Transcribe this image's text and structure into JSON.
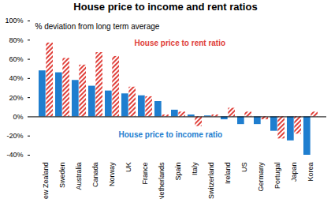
{
  "chart_data": {
    "type": "bar",
    "title": "House price to income and rent ratios",
    "subtitle": "% deviation from long term average",
    "categories": [
      "New Zealand",
      "Sweden",
      "Australia",
      "Canada",
      "Norway",
      "UK",
      "France",
      "Netherlands",
      "Spain",
      "Italy",
      "Switzerland",
      "Ireland",
      "US",
      "Germany",
      "Portugal",
      "Japan",
      "Korea"
    ],
    "series": [
      {
        "name": "House price to income ratio",
        "color": "#1f7ecf",
        "values": [
          48,
          46,
          38,
          32,
          27,
          24,
          22,
          16,
          7,
          2,
          1,
          -3,
          -8,
          -8,
          -15,
          -25,
          -40
        ]
      },
      {
        "name": "House price to rent ratio",
        "color": "#e0403a",
        "values": [
          77,
          61,
          54,
          67,
          63,
          31,
          21,
          2,
          5,
          -10,
          2,
          9,
          5,
          -3,
          -23,
          -18,
          5
        ]
      }
    ],
    "ylim": [
      -40,
      100
    ],
    "yticks": [
      {
        "value": -40,
        "label": "-40%"
      },
      {
        "value": -20,
        "label": "-20%"
      },
      {
        "value": 0,
        "label": "0%"
      },
      {
        "value": 20,
        "label": "20%"
      },
      {
        "value": 40,
        "label": "40%"
      },
      {
        "value": 60,
        "label": "60%"
      },
      {
        "value": 80,
        "label": "80%"
      },
      {
        "value": 100,
        "label": "100%"
      }
    ],
    "grid": false
  }
}
